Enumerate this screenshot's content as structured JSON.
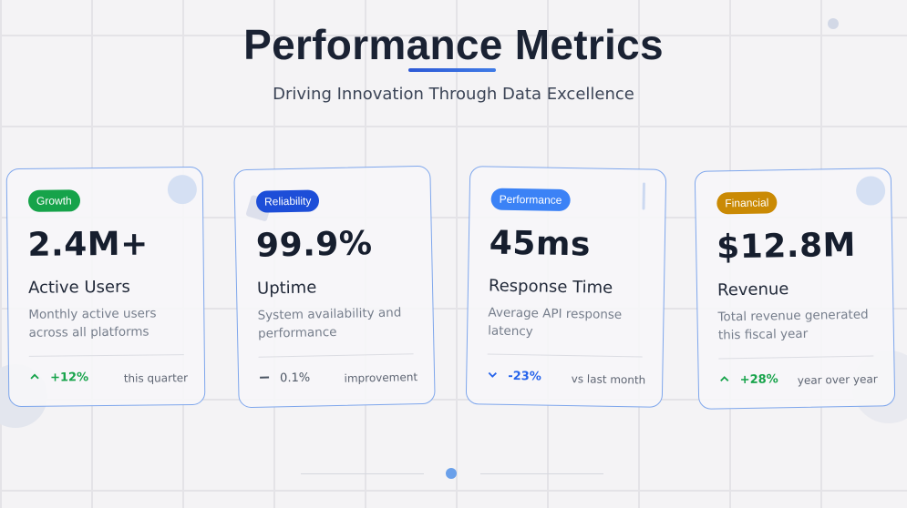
{
  "header": {
    "title": "Performance Metrics",
    "subtitle": "Driving Innovation Through Data Excellence"
  },
  "cards": [
    {
      "badge": "Growth",
      "badge_color": "#16a34a",
      "value": "2.4M+",
      "label": "Active Users",
      "description": "Monthly active users across all platforms",
      "trend_icon": "chevron-up-icon",
      "trend_value": "+12%",
      "trend_color": "#16a34a",
      "trend_note": "this quarter"
    },
    {
      "badge": "Reliability",
      "badge_color": "#1d4ed8",
      "value": "99.9%",
      "label": "Uptime",
      "description": "System availability and performance",
      "trend_icon": "dash-icon",
      "trend_value": "0.1%",
      "trend_color": "#4b5563",
      "trend_note": "improvement"
    },
    {
      "badge": "Performance",
      "badge_color": "#3b82f6",
      "value": "45ms",
      "label": "Response Time",
      "description": "Average API response latency",
      "trend_icon": "chevron-down-icon",
      "trend_value": "-23%",
      "trend_color": "#2563eb",
      "trend_note": "vs last month"
    },
    {
      "badge": "Financial",
      "badge_color": "#ca8a04",
      "value": "$12.8M",
      "label": "Revenue",
      "description": "Total revenue generated this fiscal year",
      "trend_icon": "chevron-up-icon",
      "trend_value": "+28%",
      "trend_color": "#16a34a",
      "trend_note": "year over year"
    }
  ]
}
